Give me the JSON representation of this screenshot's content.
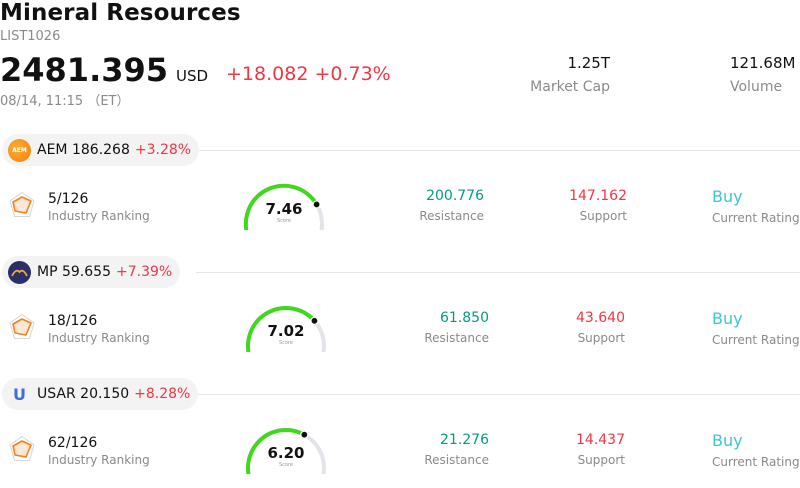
{
  "header": {
    "title": "Mineral Resources",
    "code": "LIST1026",
    "price": "2481.395",
    "currency": "USD",
    "change": "+18.082",
    "change_pct": "+0.73%",
    "time": "08/14, 11:15 （ET）",
    "market_cap_value": "1.25T",
    "market_cap_label": "Market Cap",
    "volume_value": "121.68M",
    "volume_label": "Volume"
  },
  "colors": {
    "down_red": "#f23645",
    "up_green": "#089981",
    "rating_teal": "#3cc8c8",
    "gauge_active": "#3fd81c",
    "gauge_track": "#e3e3ea"
  },
  "stocks": [
    {
      "ticker": "AEM",
      "price": "186.268",
      "pct": "+3.28%",
      "logo_text": "AEM",
      "rank": "5/126",
      "rank_label": "Industry Ranking",
      "score": "7.46",
      "score_label": "Score",
      "score_value": 7.46,
      "resistance": "200.776",
      "resistance_label": "Resistance",
      "support": "147.162",
      "support_label": "Support",
      "rating": "Buy",
      "rating_label": "Current Rating"
    },
    {
      "ticker": "MP",
      "price": "59.655",
      "pct": "+7.39%",
      "logo_text": "",
      "rank": "18/126",
      "rank_label": "Industry Ranking",
      "score": "7.02",
      "score_label": "Score",
      "score_value": 7.02,
      "resistance": "61.850",
      "resistance_label": "Resistance",
      "support": "43.640",
      "support_label": "Support",
      "rating": "Buy",
      "rating_label": "Current Rating"
    },
    {
      "ticker": "USAR",
      "price": "20.150",
      "pct": "+8.28%",
      "logo_text": "U",
      "rank": "62/126",
      "rank_label": "Industry Ranking",
      "score": "6.20",
      "score_label": "Score",
      "score_value": 6.2,
      "resistance": "21.276",
      "resistance_label": "Resistance",
      "support": "14.437",
      "support_label": "Support",
      "rating": "Buy",
      "rating_label": "Current Rating"
    }
  ]
}
